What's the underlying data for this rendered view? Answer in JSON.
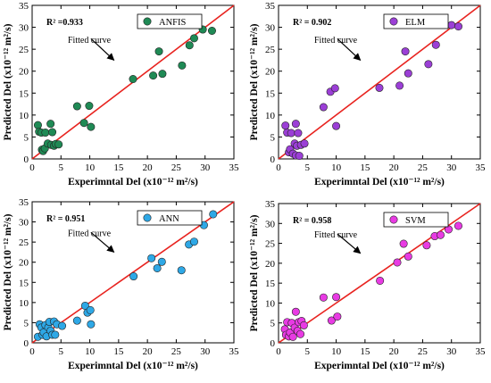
{
  "chart_data": [
    {
      "type": "scatter",
      "r2_label": "R² =0.933",
      "legend": "ANFIS",
      "xlabel": "Experimntal Del (x10⁻¹² m²/s)",
      "ylabel": "Predicted Del (x10⁻¹² m²/s)",
      "annotation": "Fitted curve",
      "xlim": [
        0,
        35
      ],
      "ylim": [
        0,
        35
      ],
      "xticks": [
        0,
        5,
        10,
        15,
        20,
        25,
        30,
        35
      ],
      "yticks": [
        0,
        5,
        10,
        15,
        20,
        25,
        30,
        35
      ],
      "marker_color": "#1f8a55",
      "line_color": "#e8231f",
      "points": [
        [
          1.0,
          7.7
        ],
        [
          1.2,
          6.2
        ],
        [
          1.6,
          6.0
        ],
        [
          1.7,
          2.1
        ],
        [
          1.9,
          1.8
        ],
        [
          2.2,
          2.4
        ],
        [
          2.3,
          6.0
        ],
        [
          2.7,
          3.5
        ],
        [
          3.2,
          8.0
        ],
        [
          3.3,
          3.2
        ],
        [
          3.5,
          6.1
        ],
        [
          3.8,
          3.0
        ],
        [
          4.1,
          3.4
        ],
        [
          4.6,
          3.3
        ],
        [
          7.8,
          12.0
        ],
        [
          9.0,
          8.2
        ],
        [
          9.9,
          12.1
        ],
        [
          10.2,
          7.3
        ],
        [
          17.5,
          18.2
        ],
        [
          21.0,
          19.0
        ],
        [
          22.0,
          24.5
        ],
        [
          22.6,
          19.4
        ],
        [
          26.0,
          21.3
        ],
        [
          27.3,
          25.9
        ],
        [
          28.1,
          27.5
        ],
        [
          29.6,
          29.5
        ],
        [
          31.2,
          29.2
        ]
      ]
    },
    {
      "type": "scatter",
      "r2_label": "R² = 0.902",
      "legend": "ELM",
      "xlabel": "Experimntal Del (x10⁻¹² m²/s)",
      "ylabel": "Predicted Del (x10⁻¹² m²/s)",
      "annotation": "Fitted curve",
      "xlim": [
        0,
        35
      ],
      "ylim": [
        0,
        35
      ],
      "xticks": [
        0,
        5,
        10,
        15,
        20,
        25,
        30,
        35
      ],
      "yticks": [
        0,
        5,
        10,
        15,
        20,
        25,
        30,
        35
      ],
      "marker_color": "#9b3fd6",
      "line_color": "#e8231f",
      "points": [
        [
          1.2,
          7.6
        ],
        [
          1.5,
          6.0
        ],
        [
          1.8,
          1.5
        ],
        [
          2.0,
          2.2
        ],
        [
          2.2,
          5.9
        ],
        [
          2.5,
          1.2
        ],
        [
          2.8,
          3.5
        ],
        [
          3.0,
          8.0
        ],
        [
          3.2,
          3.0
        ],
        [
          3.4,
          5.9
        ],
        [
          3.0,
          0.8
        ],
        [
          3.6,
          0.7
        ],
        [
          3.9,
          3.2
        ],
        [
          4.5,
          3.5
        ],
        [
          7.8,
          11.8
        ],
        [
          9.0,
          15.3
        ],
        [
          9.8,
          16.1
        ],
        [
          10.0,
          7.5
        ],
        [
          17.5,
          16.2
        ],
        [
          21.0,
          16.7
        ],
        [
          22.0,
          24.5
        ],
        [
          22.5,
          19.5
        ],
        [
          26.0,
          21.6
        ],
        [
          27.3,
          26.0
        ],
        [
          28.4,
          31.6
        ],
        [
          30.0,
          30.5
        ],
        [
          31.2,
          30.2
        ]
      ]
    },
    {
      "type": "scatter",
      "r2_label": "R² = 0.951",
      "legend": "ANN",
      "xlabel": "Experimntal Del (x10⁻¹² m²/s)",
      "ylabel": "Predicted Del (x10⁻¹² m²/s)",
      "annotation": "Fitted curve",
      "xlim": [
        0,
        35
      ],
      "ylim": [
        0,
        35
      ],
      "xticks": [
        0,
        5,
        10,
        15,
        20,
        25,
        30,
        35
      ],
      "yticks": [
        0,
        5,
        10,
        15,
        20,
        25,
        30,
        35
      ],
      "marker_color": "#2ea8e6",
      "line_color": "#e8231f",
      "points": [
        [
          1.0,
          1.5
        ],
        [
          1.3,
          4.6
        ],
        [
          1.6,
          3.8
        ],
        [
          1.8,
          2.0
        ],
        [
          2.0,
          2.6
        ],
        [
          2.3,
          4.4
        ],
        [
          2.5,
          1.6
        ],
        [
          2.8,
          3.8
        ],
        [
          3.0,
          5.2
        ],
        [
          3.2,
          3.0
        ],
        [
          3.5,
          2.0
        ],
        [
          3.8,
          5.3
        ],
        [
          4.0,
          2.0
        ],
        [
          4.3,
          4.6
        ],
        [
          5.2,
          4.2
        ],
        [
          7.8,
          5.5
        ],
        [
          9.2,
          9.2
        ],
        [
          9.6,
          7.5
        ],
        [
          10.1,
          8.1
        ],
        [
          10.2,
          4.6
        ],
        [
          17.6,
          16.5
        ],
        [
          20.7,
          21.0
        ],
        [
          21.7,
          18.5
        ],
        [
          22.5,
          20.1
        ],
        [
          25.9,
          18.0
        ],
        [
          27.2,
          24.4
        ],
        [
          28.1,
          25.1
        ],
        [
          29.8,
          29.2
        ],
        [
          31.4,
          31.9
        ]
      ]
    },
    {
      "type": "scatter",
      "r2_label": "R² = 0.958",
      "legend": "SVM",
      "xlabel": "Experimntal Del (x10⁻¹² m²/s)",
      "ylabel": "Predicted Del (x10⁻¹² m²/s)",
      "annotation": "Fitted curve",
      "xlim": [
        0,
        35
      ],
      "ylim": [
        0,
        35
      ],
      "xticks": [
        0,
        5,
        10,
        15,
        20,
        25,
        30,
        35
      ],
      "yticks": [
        0,
        5,
        10,
        15,
        20,
        25,
        30,
        35
      ],
      "marker_color": "#e83be3",
      "line_color": "#e8231f",
      "points": [
        [
          1.1,
          3.4
        ],
        [
          1.3,
          2.0
        ],
        [
          1.5,
          5.2
        ],
        [
          1.8,
          1.6
        ],
        [
          2.0,
          2.6
        ],
        [
          2.3,
          5.0
        ],
        [
          2.5,
          1.5
        ],
        [
          2.8,
          3.8
        ],
        [
          3.0,
          7.8
        ],
        [
          3.3,
          3.0
        ],
        [
          3.5,
          5.2
        ],
        [
          3.8,
          2.2
        ],
        [
          4.0,
          5.5
        ],
        [
          4.4,
          4.4
        ],
        [
          7.8,
          11.4
        ],
        [
          9.2,
          5.6
        ],
        [
          10.0,
          11.5
        ],
        [
          10.2,
          6.6
        ],
        [
          17.6,
          15.6
        ],
        [
          20.6,
          20.2
        ],
        [
          21.7,
          24.9
        ],
        [
          22.5,
          21.7
        ],
        [
          25.7,
          24.5
        ],
        [
          27.1,
          26.8
        ],
        [
          28.1,
          27.1
        ],
        [
          29.5,
          28.5
        ],
        [
          31.2,
          29.4
        ]
      ]
    }
  ]
}
